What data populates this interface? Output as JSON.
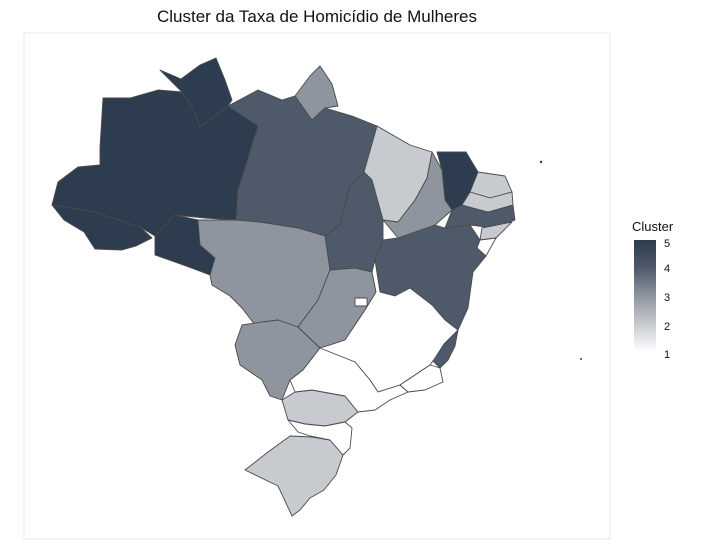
{
  "title": "Cluster da Taxa de Homicídio de Mulheres",
  "legend": {
    "title": "Cluster",
    "ticks": [
      "5",
      "4",
      "3",
      "2",
      "1"
    ],
    "gradient": [
      "#2e3c50",
      "#4e5a6a",
      "#8f959f",
      "#c7cacf",
      "#ffffff"
    ]
  },
  "map": {
    "border_color": "#4a4a4a",
    "panel_border": "#ddeaf5",
    "states": [
      {
        "name": "Acre",
        "cluster": 5
      },
      {
        "name": "Amazonas",
        "cluster": 5
      },
      {
        "name": "Roraima",
        "cluster": 5
      },
      {
        "name": "Rondônia",
        "cluster": 5
      },
      {
        "name": "Ceará",
        "cluster": 5
      },
      {
        "name": "Pará",
        "cluster": 4
      },
      {
        "name": "Tocantins",
        "cluster": 4
      },
      {
        "name": "Bahia",
        "cluster": 4
      },
      {
        "name": "Espírito Santo",
        "cluster": 4
      },
      {
        "name": "Pernambuco",
        "cluster": 4
      },
      {
        "name": "Amapá",
        "cluster": 3
      },
      {
        "name": "Mato Grosso",
        "cluster": 3
      },
      {
        "name": "Mato Grosso do Sul",
        "cluster": 3
      },
      {
        "name": "Goiás",
        "cluster": 3
      },
      {
        "name": "Piauí",
        "cluster": 3
      },
      {
        "name": "Maranhão",
        "cluster": 2
      },
      {
        "name": "Paraná",
        "cluster": 2
      },
      {
        "name": "Rio Grande do Sul",
        "cluster": 2
      },
      {
        "name": "Rio Grande do Norte",
        "cluster": 2
      },
      {
        "name": "Paraíba",
        "cluster": 2
      },
      {
        "name": "Alagoas",
        "cluster": 2
      },
      {
        "name": "Minas Gerais",
        "cluster": 1
      },
      {
        "name": "São Paulo",
        "cluster": 1
      },
      {
        "name": "Rio de Janeiro",
        "cluster": 1
      },
      {
        "name": "Santa Catarina",
        "cluster": 1
      },
      {
        "name": "Sergipe",
        "cluster": 1
      },
      {
        "name": "Distrito Federal",
        "cluster": 1
      }
    ]
  }
}
